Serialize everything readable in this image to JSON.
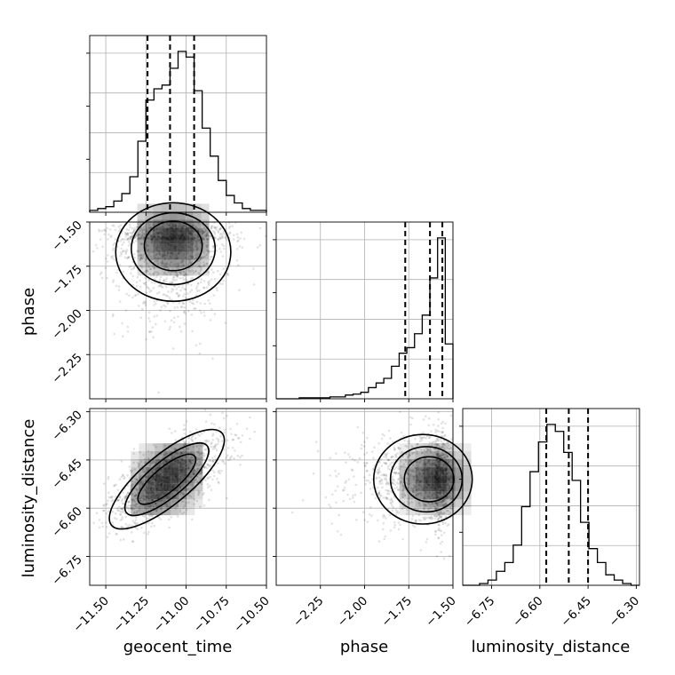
{
  "chart_data": {
    "type": "corner",
    "parameters": [
      "geocent_time",
      "phase",
      "luminosity_distance"
    ],
    "axis_labels": {
      "x": [
        "geocent_time",
        "phase",
        "luminosity_distance"
      ],
      "y": [
        "",
        "phase",
        "luminosity_distance"
      ]
    },
    "ranges": {
      "geocent_time": [
        -11.6,
        -10.5
      ],
      "phase": [
        -2.5,
        -1.5
      ],
      "luminosity_distance": [
        -6.84,
        -6.29
      ]
    },
    "ticks": {
      "geocent_time": [
        -11.5,
        -11.25,
        -11.0,
        -10.75,
        -10.5
      ],
      "phase": [
        -2.25,
        -2.0,
        -1.75,
        -1.5
      ],
      "luminosity_distance": [
        -6.75,
        -6.6,
        -6.45,
        -6.3
      ]
    },
    "tick_labels": {
      "geocent_time": [
        "−11.50",
        "−11.25",
        "−11.00",
        "−10.75",
        "−10.50"
      ],
      "phase": [
        "−2.25",
        "−2.00",
        "−1.75",
        "−1.50"
      ],
      "luminosity_distance": [
        "−6.75",
        "−6.60",
        "−6.45",
        "−6.30"
      ]
    },
    "histograms": {
      "geocent_time": {
        "x_range": [
          -11.6,
          -10.5
        ],
        "counts": [
          1,
          2,
          3,
          6,
          10,
          19,
          38,
          60,
          66,
          68,
          77,
          86,
          83,
          65,
          45,
          30,
          17,
          9,
          5,
          2,
          1,
          1
        ],
        "quantiles": [
          -11.24,
          -11.1,
          -10.95
        ]
      },
      "phase": {
        "x_range": [
          -2.5,
          -1.5
        ],
        "counts": [
          0,
          0,
          0,
          1,
          1,
          1,
          1,
          2,
          2,
          4,
          5,
          7,
          12,
          17,
          22,
          35,
          49,
          55,
          70,
          90,
          130,
          173,
          59
        ],
        "quantiles": [
          -1.77,
          -1.63,
          -1.56
        ]
      },
      "luminosity_distance": {
        "x_range": [
          -6.84,
          -6.29
        ],
        "counts": [
          0,
          0,
          1,
          3,
          8,
          13,
          23,
          45,
          65,
          82,
          92,
          88,
          76,
          60,
          36,
          21,
          13,
          6,
          3,
          1,
          0
        ],
        "quantiles": [
          -6.58,
          -6.51,
          -6.45
        ]
      }
    },
    "pairs": [
      {
        "x": "geocent_time",
        "y": "phase",
        "center": [
          -11.08,
          -1.6
        ],
        "spread": [
          0.18,
          0.14
        ],
        "correlation": 0.0,
        "skew": "y_tail_low"
      },
      {
        "x": "geocent_time",
        "y": "luminosity_distance",
        "center": [
          -11.12,
          -6.51
        ],
        "spread": [
          0.18,
          0.07
        ],
        "correlation": 0.65
      },
      {
        "x": "phase",
        "y": "luminosity_distance",
        "center": [
          -1.6,
          -6.51
        ],
        "spread": [
          0.14,
          0.07
        ],
        "correlation": 0.0,
        "skew": "x_tail_low"
      }
    ],
    "grid": true,
    "contour_levels": 3
  }
}
